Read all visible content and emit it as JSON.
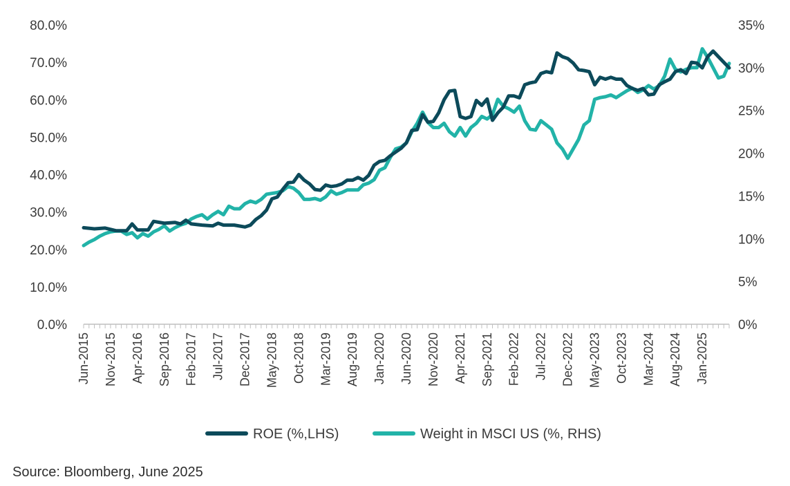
{
  "source": "Source: Bloomberg, June 2025",
  "chart_data": {
    "type": "line",
    "title": "",
    "xlabel": "",
    "ylabel_left": "",
    "ylabel_right": "",
    "x_ticks": [
      "Jun-2015",
      "Nov-2015",
      "Apr-2016",
      "Sep-2016",
      "Feb-2017",
      "Jul-2017",
      "Dec-2017",
      "May-2018",
      "Oct-2018",
      "Mar-2019",
      "Aug-2019",
      "Jan-2020",
      "Jun-2020",
      "Nov-2020",
      "Apr-2021",
      "Sep-2021",
      "Feb-2022",
      "Jul-2022",
      "Dec-2022",
      "May-2023",
      "Oct-2023",
      "Mar-2024",
      "Aug-2024",
      "Jan-2025"
    ],
    "x_range": [
      "Jun-2015",
      "Jun-2025"
    ],
    "y_left": {
      "ticks": [
        "0.0%",
        "10.0%",
        "20.0%",
        "30.0%",
        "40.0%",
        "50.0%",
        "60.0%",
        "70.0%",
        "80.0%"
      ],
      "range": [
        0,
        80
      ]
    },
    "y_right": {
      "ticks": [
        "0%",
        "5%",
        "10%",
        "15%",
        "20%",
        "25%",
        "30%",
        "35%"
      ],
      "range": [
        0,
        35
      ]
    },
    "grid": false,
    "legend_position": "bottom-center",
    "colors": {
      "roe": "#0c4a5a",
      "weight": "#22b3a8"
    },
    "series": [
      {
        "name": "ROE (%,LHS)",
        "axis": "left",
        "values": [
          [
            "Jun-2015",
            25.8
          ],
          [
            "Aug-2015",
            25.5
          ],
          [
            "Oct-2015",
            25.7
          ],
          [
            "Dec-2015",
            25.0
          ],
          [
            "Feb-2016",
            25.0
          ],
          [
            "Mar-2016",
            26.8
          ],
          [
            "Apr-2016",
            25.2
          ],
          [
            "Jun-2016",
            25.2
          ],
          [
            "Jul-2016",
            27.5
          ],
          [
            "Sep-2016",
            27.0
          ],
          [
            "Nov-2016",
            27.2
          ],
          [
            "Dec-2016",
            26.8
          ],
          [
            "Jan-2017",
            27.8
          ],
          [
            "Feb-2017",
            26.8
          ],
          [
            "Apr-2017",
            26.5
          ],
          [
            "Jun-2017",
            26.3
          ],
          [
            "Jul-2017",
            27.0
          ],
          [
            "Aug-2017",
            26.5
          ],
          [
            "Oct-2017",
            26.5
          ],
          [
            "Dec-2017",
            26.0
          ],
          [
            "Jan-2018",
            26.5
          ],
          [
            "Feb-2018",
            28.0
          ],
          [
            "Mar-2018",
            29.0
          ],
          [
            "Apr-2018",
            30.5
          ],
          [
            "May-2018",
            33.5
          ],
          [
            "Jun-2018",
            34.0
          ],
          [
            "Jul-2018",
            36.0
          ],
          [
            "Aug-2018",
            37.8
          ],
          [
            "Sep-2018",
            38.0
          ],
          [
            "Oct-2018",
            40.0
          ],
          [
            "Nov-2018",
            38.5
          ],
          [
            "Dec-2018",
            37.5
          ],
          [
            "Jan-2019",
            36.0
          ],
          [
            "Feb-2019",
            35.8
          ],
          [
            "Mar-2019",
            37.2
          ],
          [
            "Apr-2019",
            36.8
          ],
          [
            "May-2019",
            37.0
          ],
          [
            "Jun-2019",
            37.5
          ],
          [
            "Jul-2019",
            38.5
          ],
          [
            "Aug-2019",
            38.5
          ],
          [
            "Sep-2019",
            39.2
          ],
          [
            "Oct-2019",
            38.5
          ],
          [
            "Nov-2019",
            39.8
          ],
          [
            "Dec-2019",
            42.5
          ],
          [
            "Jan-2020",
            43.5
          ],
          [
            "Feb-2020",
            43.8
          ],
          [
            "Mar-2020",
            45.0
          ],
          [
            "Apr-2020",
            46.0
          ],
          [
            "May-2020",
            47.0
          ],
          [
            "Jun-2020",
            48.5
          ],
          [
            "Jul-2020",
            51.8
          ],
          [
            "Aug-2020",
            52.0
          ],
          [
            "Sep-2020",
            56.0
          ],
          [
            "Oct-2020",
            54.0
          ],
          [
            "Nov-2020",
            54.2
          ],
          [
            "Dec-2020",
            56.5
          ],
          [
            "Jan-2021",
            60.0
          ],
          [
            "Feb-2021",
            62.3
          ],
          [
            "Mar-2021",
            62.5
          ],
          [
            "Apr-2021",
            55.5
          ],
          [
            "May-2021",
            55.0
          ],
          [
            "Jun-2021",
            55.5
          ],
          [
            "Jul-2021",
            59.8
          ],
          [
            "Aug-2021",
            58.5
          ],
          [
            "Sep-2021",
            60.2
          ],
          [
            "Oct-2021",
            54.5
          ],
          [
            "Nov-2021",
            56.5
          ],
          [
            "Dec-2021",
            58.0
          ],
          [
            "Jan-2022",
            61.0
          ],
          [
            "Feb-2022",
            61.0
          ],
          [
            "Mar-2022",
            60.5
          ],
          [
            "Apr-2022",
            64.0
          ],
          [
            "May-2022",
            64.5
          ],
          [
            "Jun-2022",
            64.8
          ],
          [
            "Jul-2022",
            67.0
          ],
          [
            "Aug-2022",
            67.5
          ],
          [
            "Sep-2022",
            67.2
          ],
          [
            "Oct-2022",
            72.5
          ],
          [
            "Nov-2022",
            71.5
          ],
          [
            "Dec-2022",
            71.0
          ],
          [
            "Jan-2023",
            69.8
          ],
          [
            "Feb-2023",
            68.0
          ],
          [
            "Mar-2023",
            67.8
          ],
          [
            "Apr-2023",
            67.5
          ],
          [
            "May-2023",
            64.0
          ],
          [
            "Jun-2023",
            66.0
          ],
          [
            "Jul-2023",
            65.5
          ],
          [
            "Aug-2023",
            66.0
          ],
          [
            "Sep-2023",
            65.5
          ],
          [
            "Oct-2023",
            65.5
          ],
          [
            "Nov-2023",
            63.8
          ],
          [
            "Dec-2023",
            63.0
          ],
          [
            "Jan-2024",
            62.5
          ],
          [
            "Feb-2024",
            63.0
          ],
          [
            "Mar-2024",
            61.3
          ],
          [
            "Apr-2024",
            61.5
          ],
          [
            "May-2024",
            64.0
          ],
          [
            "Jun-2024",
            64.8
          ],
          [
            "Jul-2024",
            65.5
          ],
          [
            "Aug-2024",
            67.5
          ],
          [
            "Sep-2024",
            68.0
          ],
          [
            "Oct-2024",
            67.0
          ],
          [
            "Nov-2024",
            70.0
          ],
          [
            "Dec-2024",
            69.8
          ],
          [
            "Jan-2025",
            68.5
          ],
          [
            "Feb-2025",
            71.5
          ],
          [
            "Mar-2025",
            73.0
          ],
          [
            "Apr-2025",
            71.5
          ],
          [
            "May-2025",
            70.0
          ],
          [
            "Jun-2025",
            68.5
          ]
        ]
      },
      {
        "name": "Weight in MSCI US (%, RHS)",
        "axis": "right",
        "values": [
          [
            "Jun-2015",
            9.2
          ],
          [
            "Jul-2015",
            9.6
          ],
          [
            "Aug-2015",
            9.9
          ],
          [
            "Sep-2015",
            10.3
          ],
          [
            "Oct-2015",
            10.6
          ],
          [
            "Nov-2015",
            10.8
          ],
          [
            "Dec-2015",
            10.9
          ],
          [
            "Jan-2016",
            10.9
          ],
          [
            "Feb-2016",
            10.5
          ],
          [
            "Mar-2016",
            10.7
          ],
          [
            "Apr-2016",
            10.1
          ],
          [
            "May-2016",
            10.6
          ],
          [
            "Jun-2016",
            10.3
          ],
          [
            "Jul-2016",
            10.8
          ],
          [
            "Aug-2016",
            11.1
          ],
          [
            "Sep-2016",
            11.5
          ],
          [
            "Oct-2016",
            10.9
          ],
          [
            "Nov-2016",
            11.3
          ],
          [
            "Dec-2016",
            11.6
          ],
          [
            "Jan-2017",
            11.8
          ],
          [
            "Feb-2017",
            12.3
          ],
          [
            "Mar-2017",
            12.6
          ],
          [
            "Apr-2017",
            12.8
          ],
          [
            "May-2017",
            12.3
          ],
          [
            "Jun-2017",
            12.8
          ],
          [
            "Jul-2017",
            13.2
          ],
          [
            "Aug-2017",
            12.8
          ],
          [
            "Sep-2017",
            13.8
          ],
          [
            "Oct-2017",
            13.5
          ],
          [
            "Nov-2017",
            13.5
          ],
          [
            "Dec-2017",
            14.1
          ],
          [
            "Jan-2018",
            14.4
          ],
          [
            "Feb-2018",
            14.2
          ],
          [
            "Mar-2018",
            14.6
          ],
          [
            "Apr-2018",
            15.2
          ],
          [
            "May-2018",
            15.3
          ],
          [
            "Jun-2018",
            15.4
          ],
          [
            "Jul-2018",
            15.6
          ],
          [
            "Aug-2018",
            16.1
          ],
          [
            "Sep-2018",
            15.9
          ],
          [
            "Oct-2018",
            15.4
          ],
          [
            "Nov-2018",
            14.6
          ],
          [
            "Dec-2018",
            14.6
          ],
          [
            "Jan-2019",
            14.7
          ],
          [
            "Feb-2019",
            14.5
          ],
          [
            "Mar-2019",
            14.9
          ],
          [
            "Apr-2019",
            15.6
          ],
          [
            "May-2019",
            15.2
          ],
          [
            "Jun-2019",
            15.4
          ],
          [
            "Jul-2019",
            15.7
          ],
          [
            "Aug-2019",
            15.7
          ],
          [
            "Sep-2019",
            15.7
          ],
          [
            "Oct-2019",
            16.3
          ],
          [
            "Nov-2019",
            16.5
          ],
          [
            "Dec-2019",
            16.9
          ],
          [
            "Jan-2020",
            18.0
          ],
          [
            "Feb-2020",
            18.3
          ],
          [
            "Mar-2020",
            19.5
          ],
          [
            "Apr-2020",
            20.5
          ],
          [
            "May-2020",
            20.7
          ],
          [
            "Jun-2020",
            21.2
          ],
          [
            "Jul-2020",
            22.5
          ],
          [
            "Aug-2020",
            23.5
          ],
          [
            "Sep-2020",
            24.8
          ],
          [
            "Oct-2020",
            23.6
          ],
          [
            "Nov-2020",
            23.0
          ],
          [
            "Dec-2020",
            23.0
          ],
          [
            "Jan-2021",
            23.5
          ],
          [
            "Feb-2021",
            22.5
          ],
          [
            "Mar-2021",
            22.0
          ],
          [
            "Apr-2021",
            23.0
          ],
          [
            "May-2021",
            22.0
          ],
          [
            "Jun-2021",
            23.0
          ],
          [
            "Jul-2021",
            23.5
          ],
          [
            "Aug-2021",
            24.3
          ],
          [
            "Sep-2021",
            24.0
          ],
          [
            "Oct-2021",
            24.5
          ],
          [
            "Nov-2021",
            26.3
          ],
          [
            "Dec-2021",
            25.5
          ],
          [
            "Jan-2022",
            25.2
          ],
          [
            "Feb-2022",
            24.8
          ],
          [
            "Mar-2022",
            25.5
          ],
          [
            "Apr-2022",
            23.8
          ],
          [
            "May-2022",
            22.8
          ],
          [
            "Jun-2022",
            22.7
          ],
          [
            "Jul-2022",
            23.8
          ],
          [
            "Aug-2022",
            23.3
          ],
          [
            "Sep-2022",
            22.8
          ],
          [
            "Oct-2022",
            21.2
          ],
          [
            "Nov-2022",
            20.5
          ],
          [
            "Dec-2022",
            19.4
          ],
          [
            "Jan-2023",
            20.5
          ],
          [
            "Feb-2023",
            21.6
          ],
          [
            "Mar-2023",
            23.3
          ],
          [
            "Apr-2023",
            23.8
          ],
          [
            "May-2023",
            26.3
          ],
          [
            "Jun-2023",
            26.5
          ],
          [
            "Jul-2023",
            26.6
          ],
          [
            "Aug-2023",
            26.8
          ],
          [
            "Sep-2023",
            26.5
          ],
          [
            "Oct-2023",
            26.9
          ],
          [
            "Nov-2023",
            27.3
          ],
          [
            "Dec-2023",
            27.6
          ],
          [
            "Jan-2024",
            27.1
          ],
          [
            "Feb-2024",
            27.4
          ],
          [
            "Mar-2024",
            27.9
          ],
          [
            "Apr-2024",
            27.5
          ],
          [
            "May-2024",
            27.9
          ],
          [
            "Jun-2024",
            29.0
          ],
          [
            "Jul-2024",
            31.0
          ],
          [
            "Aug-2024",
            29.8
          ],
          [
            "Sep-2024",
            29.5
          ],
          [
            "Oct-2024",
            29.8
          ],
          [
            "Nov-2024",
            30.0
          ],
          [
            "Dec-2024",
            30.0
          ],
          [
            "Jan-2025",
            32.2
          ],
          [
            "Feb-2025",
            31.2
          ],
          [
            "Mar-2025",
            30.0
          ],
          [
            "Apr-2025",
            28.8
          ],
          [
            "May-2025",
            29.0
          ],
          [
            "Jun-2025",
            30.5
          ]
        ]
      }
    ]
  }
}
